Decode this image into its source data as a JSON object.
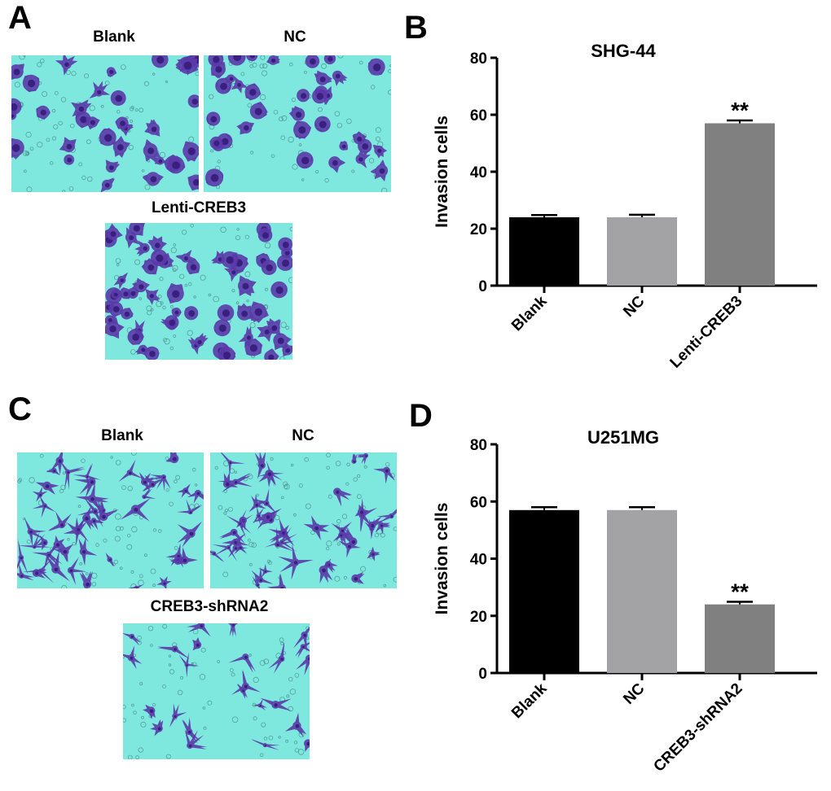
{
  "panels": {
    "A": {
      "letter": "A",
      "images": [
        {
          "label": "Blank"
        },
        {
          "label": "NC"
        },
        {
          "label": "Lenti-CREB3"
        }
      ]
    },
    "B": {
      "letter": "B"
    },
    "C": {
      "letter": "C",
      "images": [
        {
          "label": "Blank"
        },
        {
          "label": "NC"
        },
        {
          "label": "CREB3-shRNA2"
        }
      ]
    },
    "D": {
      "letter": "D"
    }
  },
  "colors": {
    "micro_background": "#7ee8df",
    "cell_stain": "#5a3aa8",
    "cell_stain_dark": "#3a1f80",
    "bar_blank": "#000000",
    "bar_nc": "#a3a3a6",
    "bar_treatment": "#808080"
  },
  "chart_data": [
    {
      "type": "bar",
      "title": "SHG-44",
      "xlabel": "",
      "ylabel": "Invasion cells",
      "ylim": [
        0,
        80
      ],
      "yticks": [
        0,
        20,
        40,
        60,
        80
      ],
      "categories": [
        "Blank",
        "NC",
        "Lenti-CREB3"
      ],
      "values": [
        24,
        24,
        57
      ],
      "errors": [
        0.8,
        0.9,
        1.0
      ],
      "annotations": [
        "",
        "",
        "**"
      ],
      "grid": false
    },
    {
      "type": "bar",
      "title": "U251MG",
      "xlabel": "",
      "ylabel": "Invasion cells",
      "ylim": [
        0,
        80
      ],
      "yticks": [
        0,
        20,
        40,
        60,
        80
      ],
      "categories": [
        "Blank",
        "NC",
        "CREB3-shRNA2"
      ],
      "values": [
        57,
        57,
        24
      ],
      "errors": [
        1.0,
        1.0,
        0.9
      ],
      "annotations": [
        "",
        "",
        "**"
      ],
      "grid": false
    }
  ]
}
